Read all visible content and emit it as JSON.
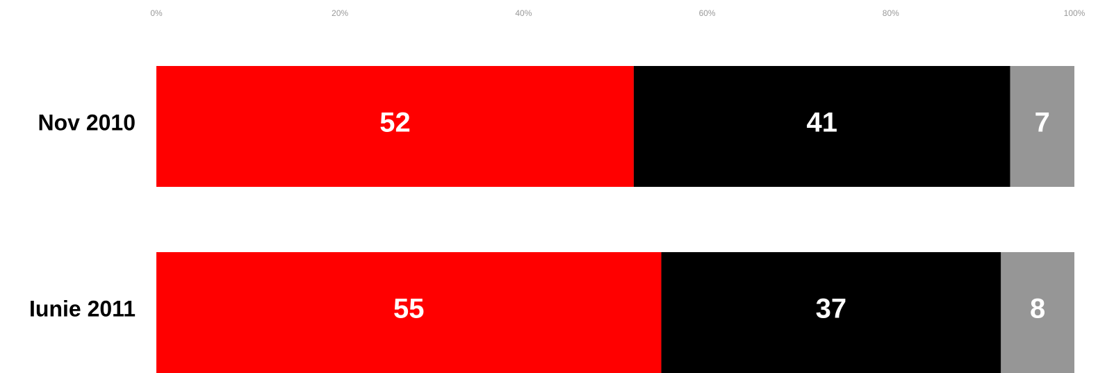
{
  "chart_data": {
    "type": "stacked-bar-horizontal",
    "categories": [
      "Nov 2010",
      "Iunie 2011"
    ],
    "series": [
      {
        "color": "#ff0000",
        "values": [
          52,
          55
        ]
      },
      {
        "color": "#000000",
        "values": [
          41,
          37
        ]
      },
      {
        "color": "#969696",
        "values": [
          7,
          8
        ]
      }
    ],
    "xlim": [
      0,
      100
    ],
    "xticks": [
      {
        "value": 0,
        "label": "0%"
      },
      {
        "value": 20,
        "label": "20%"
      },
      {
        "value": 40,
        "label": "40%"
      },
      {
        "value": 60,
        "label": "60%"
      },
      {
        "value": 80,
        "label": "80%"
      },
      {
        "value": 100,
        "label": "100%"
      }
    ],
    "grid": false
  }
}
